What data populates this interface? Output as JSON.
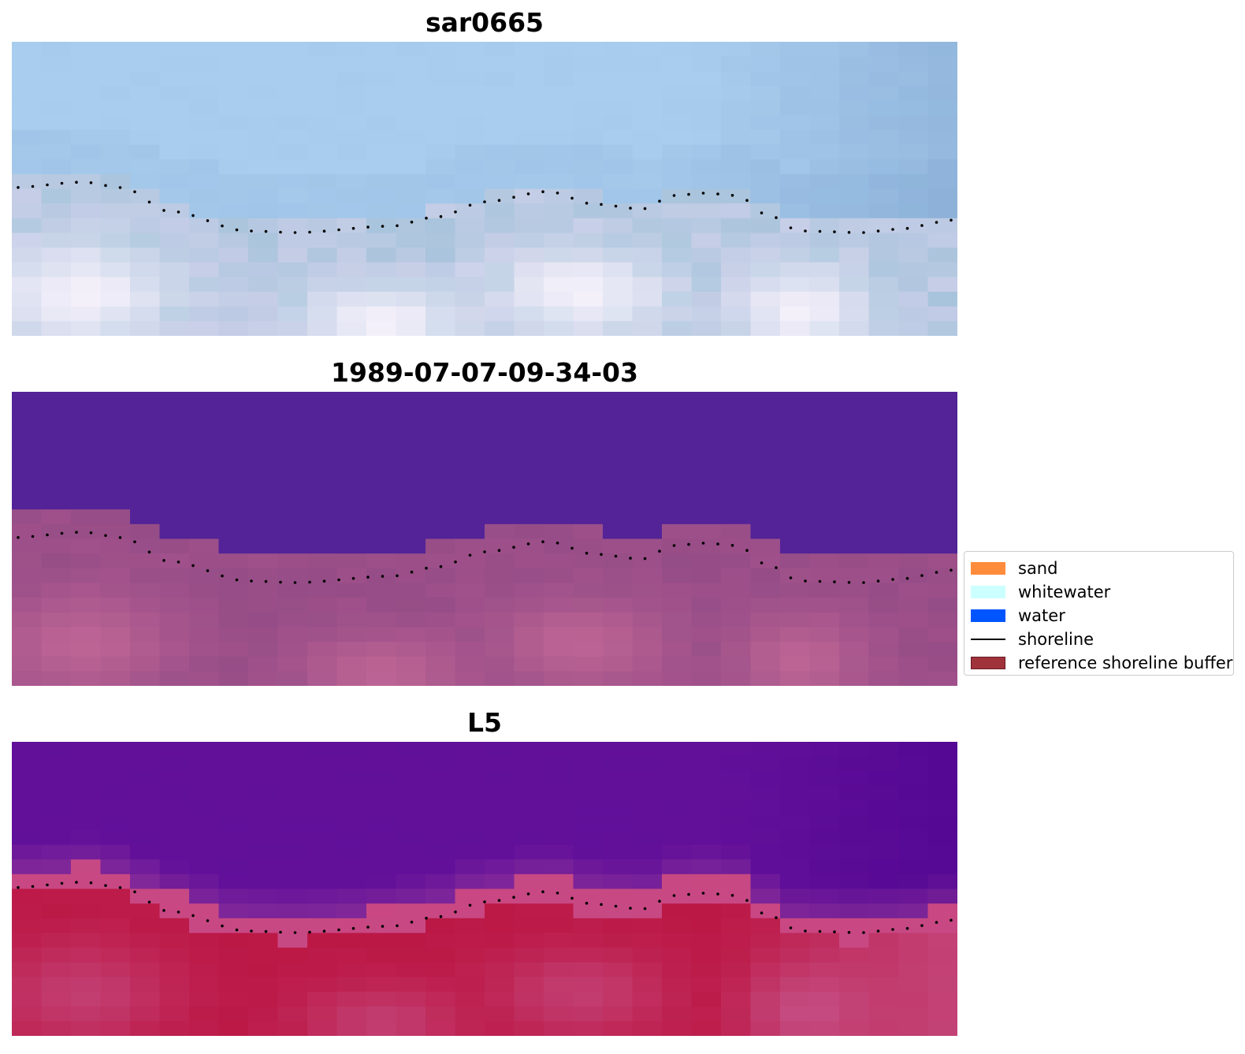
{
  "panels": [
    {
      "title": "sar0665",
      "style": "sar"
    },
    {
      "title": "1989-07-07-09-34-03",
      "style": "classified"
    },
    {
      "title": "L5",
      "style": "l5"
    }
  ],
  "legend": {
    "items": [
      {
        "label": "sand",
        "color": "#ff8c3c",
        "kind": "patch"
      },
      {
        "label": "whitewater",
        "color": "#ccffff",
        "kind": "patch"
      },
      {
        "label": "water",
        "color": "#0055ff",
        "kind": "patch"
      },
      {
        "label": "shoreline",
        "color": "#000000",
        "kind": "line"
      },
      {
        "label": "reference shoreline buffer",
        "color": "#a0323c",
        "kind": "patch"
      }
    ]
  },
  "colors": {
    "sar_sky": "#a8cdee",
    "sar_dark": "#8aaed6",
    "sar_bright": "#f4f0fa",
    "water_purple": "#532397",
    "land_pink": "#a8528c",
    "l5_purple": "#62109a",
    "l5_red": "#b8123e"
  }
}
